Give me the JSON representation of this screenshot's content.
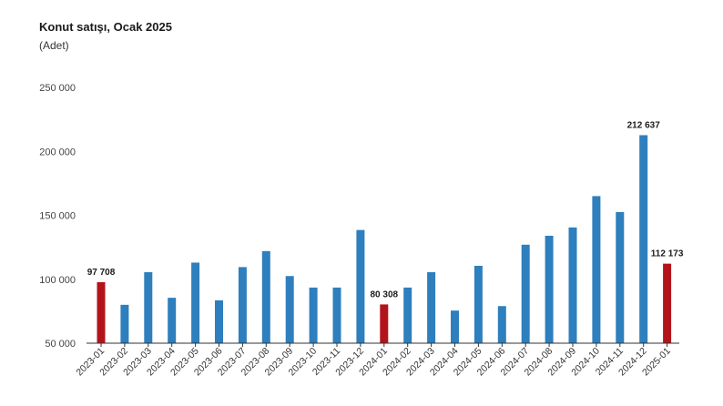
{
  "chart_data": {
    "type": "bar",
    "title": "Konut satışı, Ocak 2025",
    "subtitle": "(Adet)",
    "xlabel": "",
    "ylabel": "",
    "ylim": [
      50000,
      250000
    ],
    "yticks": [
      50000,
      100000,
      150000,
      200000,
      250000
    ],
    "ytick_labels": [
      "50 000",
      "100 000",
      "150 000",
      "200 000",
      "250 000"
    ],
    "grid": false,
    "categories": [
      "2023-01",
      "2023-02",
      "2023-03",
      "2023-04",
      "2023-05",
      "2023-06",
      "2023-07",
      "2023-08",
      "2023-09",
      "2023-10",
      "2023-11",
      "2023-12",
      "2024-01",
      "2024-02",
      "2024-03",
      "2024-04",
      "2024-05",
      "2024-06",
      "2024-07",
      "2024-08",
      "2024-09",
      "2024-10",
      "2024-11",
      "2024-12",
      "2025-01"
    ],
    "values": [
      97708,
      80000,
      105500,
      85500,
      113000,
      83500,
      109500,
      122000,
      102500,
      93500,
      93500,
      138500,
      80308,
      93500,
      105500,
      75500,
      110500,
      79000,
      127000,
      134000,
      140500,
      165000,
      152500,
      212637,
      112173
    ],
    "highlighted": [
      "2023-01",
      "2024-01",
      "2025-01"
    ],
    "data_labels": [
      {
        "category": "2023-01",
        "text": "97 708"
      },
      {
        "category": "2024-01",
        "text": "80 308"
      },
      {
        "category": "2024-12",
        "text": "212 637"
      },
      {
        "category": "2025-01",
        "text": "112 173"
      }
    ],
    "colors": {
      "default": "#2e7fbd",
      "highlight": "#b3141c",
      "axis": "#333333"
    }
  }
}
